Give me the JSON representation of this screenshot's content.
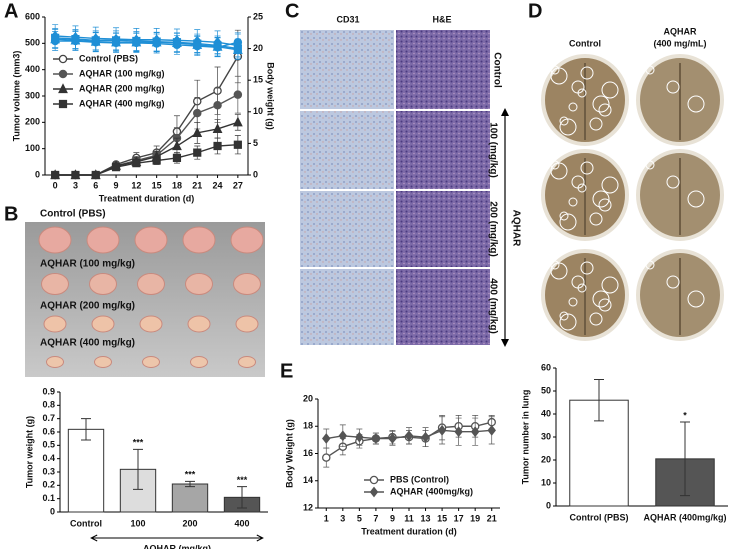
{
  "panel_letters": [
    "A",
    "B",
    "C",
    "D",
    "E"
  ],
  "photo_b": {
    "labels": [
      "Control (PBS)",
      "AQHAR (100 mg/kg)",
      "AQHAR (200 mg/kg)",
      "AQHAR (400 mg/kg)"
    ]
  },
  "photo_c": {
    "columns": [
      "CD31",
      "H&E"
    ],
    "rows": [
      "Control",
      "100 (mg/kg)",
      "200 (mg/kg)",
      "400 (mg/kg)"
    ],
    "group": "AQHAR"
  },
  "photo_d": {
    "columns": [
      [
        "Control"
      ],
      [
        "AQHAR",
        "(400 mg/mL)"
      ]
    ]
  },
  "chart_data": [
    {
      "type": "line",
      "xlabel": "Treatment duration (d)",
      "ylabel": "Tumor volume (mm3)",
      "y2label": "Body weight (g)",
      "x": [
        0,
        3,
        6,
        9,
        12,
        15,
        18,
        21,
        24,
        27
      ],
      "xlim": [
        -1.5,
        28.5
      ],
      "xticks": [
        0,
        3,
        6,
        9,
        12,
        15,
        18,
        21,
        24,
        27
      ],
      "ylim": [
        0,
        600
      ],
      "yticks": [
        0,
        100,
        200,
        300,
        400,
        500,
        600
      ],
      "y2lim": [
        0,
        25
      ],
      "y2ticks": [
        0,
        5,
        10,
        15,
        20,
        25
      ],
      "legend": "upper left",
      "series": [
        {
          "name": "Control (PBS)",
          "color": "#444444",
          "marker": "circle-open",
          "values": [
            0,
            0,
            0,
            40,
            65,
            85,
            165,
            280,
            320,
            450
          ],
          "errors": [
            0,
            0,
            0,
            10,
            20,
            25,
            60,
            80,
            90,
            100
          ]
        },
        {
          "name": "AQHAR (100 mg/kg)",
          "color": "#555555",
          "marker": "circle",
          "values": [
            0,
            0,
            0,
            35,
            55,
            75,
            140,
            235,
            265,
            305
          ],
          "errors": [
            0,
            0,
            0,
            10,
            15,
            20,
            40,
            60,
            65,
            70
          ]
        },
        {
          "name": "AQHAR (200 mg/kg)",
          "color": "#333333",
          "marker": "triangle",
          "values": [
            0,
            0,
            0,
            35,
            50,
            70,
            110,
            160,
            175,
            200
          ],
          "errors": [
            0,
            0,
            0,
            10,
            15,
            20,
            30,
            40,
            35,
            30
          ]
        },
        {
          "name": "AQHAR (400 mg/kg)",
          "color": "#333333",
          "marker": "square",
          "values": [
            0,
            0,
            0,
            30,
            45,
            55,
            65,
            85,
            110,
            115
          ],
          "errors": [
            0,
            0,
            0,
            8,
            12,
            15,
            20,
            25,
            30,
            35
          ]
        },
        {
          "axis": "y2",
          "color": "#1f8fd6",
          "marker": "diamond",
          "values": [
            22,
            21.8,
            21.6,
            21.5,
            21.4,
            21.4,
            21.3,
            21.2,
            21,
            20.5
          ],
          "errors": [
            1.8,
            1.8,
            1.8,
            1.8,
            1.8,
            1.8,
            1.8,
            1.8,
            1.8,
            1.8
          ]
        },
        {
          "axis": "y2",
          "color": "#1f8fd6",
          "marker": "square",
          "values": [
            21.7,
            21.5,
            21.3,
            21.3,
            21.2,
            21.1,
            21,
            20.8,
            20.5,
            20
          ],
          "errors": [
            1.5,
            1.5,
            1.5,
            1.5,
            1.5,
            1.5,
            1.5,
            1.5,
            1.5,
            1.5
          ]
        },
        {
          "axis": "y2",
          "color": "#1f8fd6",
          "marker": "triangle",
          "values": [
            21.5,
            21.3,
            21.1,
            21,
            21,
            21,
            20.9,
            20.6,
            20.3,
            19.8
          ],
          "errors": [
            1.5,
            1.5,
            1.5,
            1.5,
            1.5,
            1.5,
            1.5,
            1.5,
            1.5,
            1.5
          ]
        },
        {
          "axis": "y2",
          "color": "#1f8fd6",
          "marker": "circle",
          "values": [
            21.2,
            21.2,
            21,
            20.9,
            20.9,
            20.8,
            20.6,
            20.4,
            20.2,
            21
          ],
          "errors": [
            1.5,
            1.5,
            1.5,
            1.5,
            1.5,
            1.5,
            1.5,
            1.5,
            1.5,
            1.5
          ]
        }
      ]
    },
    {
      "type": "bar",
      "xlabel": "AQHAR (mg/kg)",
      "ylabel": "Tumor weight (g)",
      "categories": [
        "Control",
        "100",
        "200",
        "400"
      ],
      "values": [
        0.62,
        0.32,
        0.21,
        0.11
      ],
      "errors": [
        0.08,
        0.15,
        0.02,
        0.08
      ],
      "colors": [
        "#ffffff",
        "#dddddd",
        "#a6a6a6",
        "#555555"
      ],
      "significance": [
        null,
        "***",
        "***",
        "***"
      ],
      "ylim": [
        0,
        0.9
      ],
      "yticks": [
        0,
        0.1,
        0.2,
        0.3,
        0.4,
        0.5,
        0.6,
        0.7,
        0.8,
        0.9
      ]
    },
    {
      "type": "bar",
      "ylabel": "Tumor number in lung",
      "categories": [
        "Control (PBS)",
        "AQHAR (400mg/kg)"
      ],
      "values": [
        46,
        20.5
      ],
      "errors": [
        9,
        16
      ],
      "colors": [
        "#ffffff",
        "#555555"
      ],
      "significance": [
        null,
        "*"
      ],
      "ylim": [
        0,
        60
      ],
      "yticks": [
        0,
        10,
        20,
        30,
        40,
        50,
        60
      ]
    },
    {
      "type": "line",
      "xlabel": "Treatment duration (d)",
      "ylabel": "Body Weight (g)",
      "x": [
        1,
        3,
        5,
        7,
        9,
        11,
        13,
        15,
        17,
        19,
        21
      ],
      "xlim": [
        0,
        22
      ],
      "xticks": [
        1,
        3,
        5,
        7,
        9,
        11,
        13,
        15,
        17,
        19,
        21
      ],
      "ylim": [
        12,
        20
      ],
      "yticks": [
        12,
        14,
        16,
        18,
        20
      ],
      "legend": "lower center",
      "series": [
        {
          "name": "PBS (Control)",
          "color": "#555555",
          "marker": "circle-open",
          "values": [
            15.7,
            16.5,
            16.9,
            17.1,
            17.2,
            17.2,
            17.1,
            17.9,
            18,
            18,
            18.3
          ],
          "errors": [
            0.7,
            0.6,
            0.5,
            0.4,
            0.5,
            0.5,
            0.6,
            0.9,
            0.8,
            0.8,
            0.5
          ]
        },
        {
          "name": "AQHAR (400mg/kg)",
          "color": "#555555",
          "marker": "diamond",
          "values": [
            17.1,
            17.3,
            17.2,
            17.1,
            17.1,
            17.3,
            17.2,
            17.7,
            17.6,
            17.6,
            17.7
          ],
          "errors": [
            0.7,
            0.8,
            0.6,
            0.4,
            0.5,
            0.6,
            0.7,
            1,
            1,
            1,
            1
          ]
        }
      ]
    }
  ]
}
